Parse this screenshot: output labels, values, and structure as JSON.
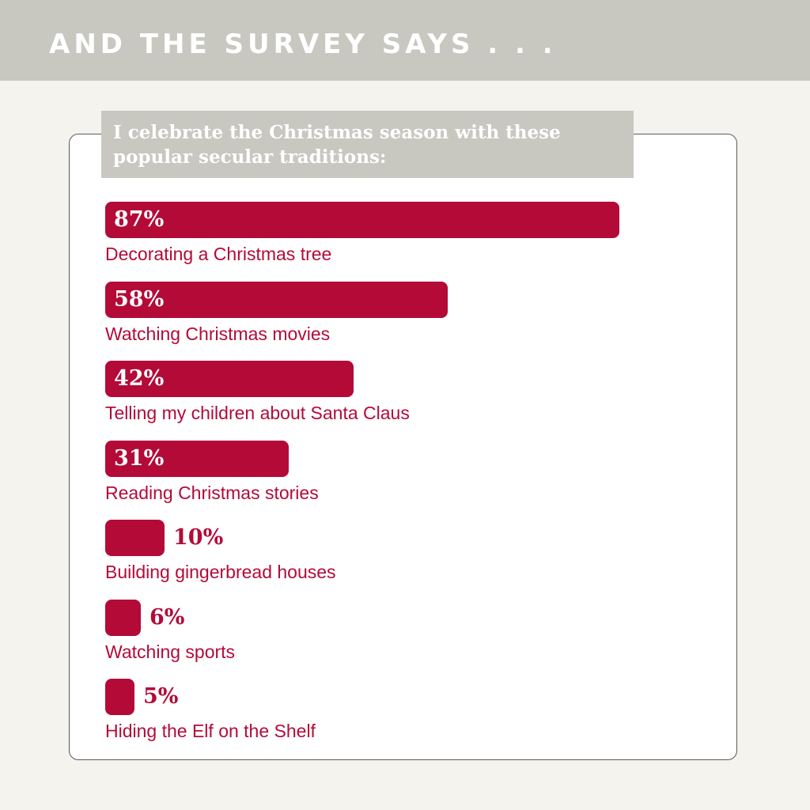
{
  "header": {
    "title": "AND THE SURVEY SAYS . . ."
  },
  "chart_data": {
    "type": "bar",
    "orientation": "horizontal",
    "title": "I celebrate the Christmas season with these popular secular traditions:",
    "categories": [
      "Decorating a Christmas tree",
      "Watching Christmas movies",
      "Telling my children about Santa Claus",
      "Reading Christmas stories",
      "Building gingerbread houses",
      "Watching sports",
      "Hiding the Elf on the Shelf"
    ],
    "values": [
      87,
      58,
      42,
      31,
      10,
      6,
      5
    ],
    "value_labels": [
      "87%",
      "58%",
      "42%",
      "31%",
      "10%",
      "6%",
      "5%"
    ],
    "unit": "%",
    "xlim": [
      0,
      100
    ],
    "grid": false,
    "legend": "none"
  },
  "colors": {
    "bar": "#b40a38",
    "header_band": "#c8c8c0",
    "background": "#f4f3ee",
    "card": "#ffffff"
  }
}
